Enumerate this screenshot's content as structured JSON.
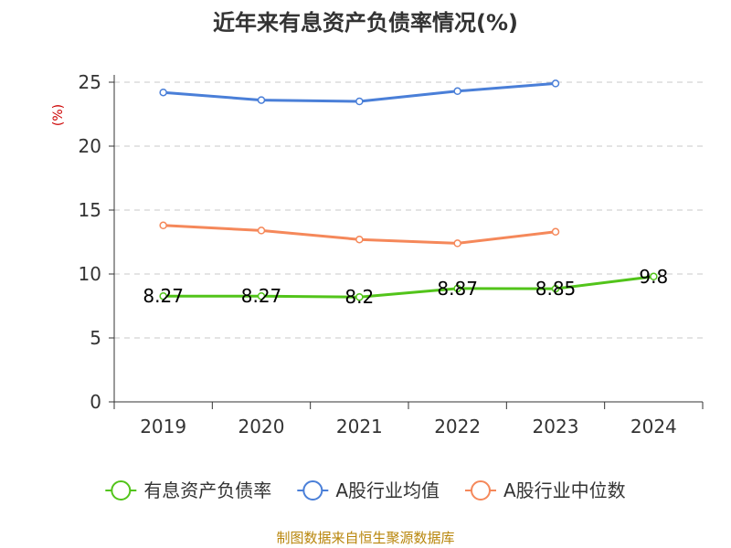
{
  "chart_data": {
    "type": "line",
    "title": "近年来有息资产负债率情况(%)",
    "ylabel": "(%)",
    "xlabel": "",
    "categories": [
      "2019",
      "2020",
      "2021",
      "2022",
      "2023",
      "2024"
    ],
    "ylim": [
      0,
      25
    ],
    "yticks": [
      0,
      5,
      10,
      15,
      20,
      25
    ],
    "grid": true,
    "legend_position": "bottom",
    "series": [
      {
        "name": "有息资产负债率",
        "color": "#52c41a",
        "values": [
          8.27,
          8.27,
          8.2,
          8.87,
          8.85,
          9.8
        ],
        "labels": [
          "8.27",
          "8.27",
          "8.2",
          "8.87",
          "8.85",
          "9.8"
        ]
      },
      {
        "name": "A股行业均值",
        "color": "#4a7fd8",
        "values": [
          24.2,
          23.6,
          23.5,
          24.3,
          24.9,
          null
        ]
      },
      {
        "name": "A股行业中位数",
        "color": "#f5885a",
        "values": [
          13.8,
          13.4,
          12.7,
          12.4,
          13.3,
          null
        ]
      }
    ]
  },
  "source": "制图数据来自恒生聚源数据库"
}
